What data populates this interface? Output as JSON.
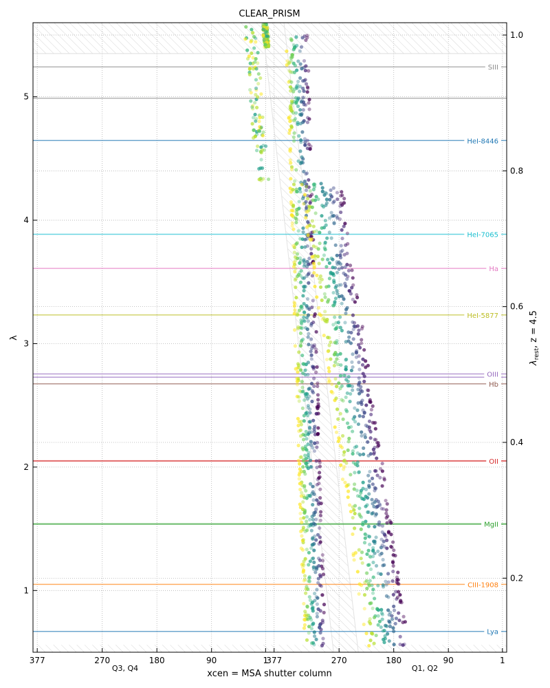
{
  "chart_data": {
    "type": "scatter",
    "title": "CLEAR_PRISM",
    "xlabel": "xcen = MSA shutter column",
    "ylabel": "λ",
    "y2label_prefix": "λ",
    "y2label_sub": "rest",
    "y2label_suffix": ", z = 4.5",
    "redshift": 4.5,
    "ylim": [
      0.5,
      5.6
    ],
    "y2_ticks": [
      0.2,
      0.4,
      0.6,
      0.8,
      1.0
    ],
    "y_ticks": [
      1,
      2,
      3,
      4,
      5
    ],
    "x_axis": {
      "panels": [
        {
          "name": "Q3, Q4",
          "range_left": 384,
          "range_right": -6
        },
        {
          "name": "Q1, Q2",
          "range_left": 384,
          "range_right": -6
        }
      ],
      "ticks": [
        377,
        270,
        180,
        90,
        1
      ],
      "panel_labels": [
        "Q3, Q4",
        "Q1, Q2"
      ]
    },
    "grid": true,
    "colormap": "viridis",
    "lines": [
      {
        "name": "SIII",
        "rest": 0.9531,
        "color": "#8c8c8c"
      },
      {
        "name": "",
        "rest": 0.9069,
        "color": "#8c8c8c"
      },
      {
        "name": "HeI-8446",
        "rest": 0.8446,
        "color": "#1f77b4"
      },
      {
        "name": "HeI-7065",
        "rest": 0.7065,
        "color": "#17becf"
      },
      {
        "name": "Ha",
        "rest": 0.6563,
        "color": "#e377c2"
      },
      {
        "name": "HeI-5877",
        "rest": 0.5877,
        "color": "#bcbd22"
      },
      {
        "name": "OIII",
        "rest": 0.5008,
        "color": "#9467bd"
      },
      {
        "name": "",
        "rest": 0.496,
        "color": "#9467bd"
      },
      {
        "name": "Hb",
        "rest": 0.4863,
        "color": "#8c564b"
      },
      {
        "name": "OII",
        "rest": 0.3727,
        "color": "#d62728"
      },
      {
        "name": "MgII",
        "rest": 0.2798,
        "color": "#2ca02c"
      },
      {
        "name": "CIII-1908",
        "rest": 0.1908,
        "color": "#ff7f0e"
      },
      {
        "name": "Lya",
        "rest": 0.1216,
        "color": "#1f77b4"
      }
    ],
    "traces": [
      {
        "panel": "Q3, Q4",
        "y_start": 5.6,
        "x_start": 27,
        "y_end": 4.3,
        "x_end": 5,
        "spread": 10,
        "dense": false
      },
      {
        "panel": "Q3, Q4",
        "y_start": 5.6,
        "x_start": 3,
        "y_end": 5.4,
        "x_end": -1,
        "spread": 4,
        "dense": false
      },
      {
        "panel": "Q1, Q2",
        "y_start": 5.5,
        "x_start": 340,
        "y_end": 0.55,
        "x_end": 310,
        "spread": 18,
        "dense": true
      },
      {
        "panel": "Q1, Q2",
        "y_start": 4.3,
        "x_start": 300,
        "y_end": 0.55,
        "x_end": 190,
        "spread": 35,
        "dense": true
      }
    ],
    "slit_band": {
      "panel_from": "Q3, Q4",
      "x_top": 7,
      "x_bottom": 0,
      "panel_to": "Q1, Q2",
      "x_bottom2": 270
    }
  }
}
